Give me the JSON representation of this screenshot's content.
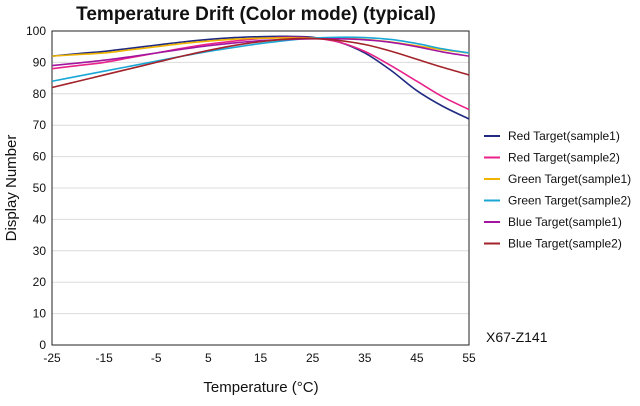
{
  "chart_data": {
    "type": "line",
    "title": "Temperature Drift  (Color mode) (typical)",
    "xlabel": "Temperature (°C)",
    "ylabel": "Display Number",
    "x_ticks": [
      "-25",
      "-15",
      "-5",
      "5",
      "15",
      "25",
      "35",
      "45",
      "55"
    ],
    "y_ticks": [
      "0",
      "10",
      "20",
      "30",
      "40",
      "50",
      "60",
      "70",
      "80",
      "90",
      "100"
    ],
    "xlim": [
      -25,
      55
    ],
    "ylim": [
      0,
      100
    ],
    "grid": "horizontal",
    "legend_position": "right",
    "model_label": "X67-Z141",
    "x": [
      -25,
      -20,
      -15,
      -10,
      -5,
      0,
      5,
      10,
      15,
      20,
      25,
      30,
      35,
      40,
      45,
      50,
      55
    ],
    "series": [
      {
        "name": "Red Target(sample1)",
        "color": "#1f2a80",
        "values": [
          92,
          92.8,
          93.5,
          94.5,
          95.5,
          96.5,
          97.3,
          97.9,
          98.2,
          98.3,
          98,
          96.5,
          93,
          87.5,
          81,
          76,
          72
        ]
      },
      {
        "name": "Red Target(sample2)",
        "color": "#e8228a",
        "values": [
          88,
          89,
          90,
          91.5,
          93,
          94.5,
          95.8,
          96.8,
          97.6,
          98,
          97.8,
          96.5,
          93.5,
          89,
          84,
          79,
          75
        ]
      },
      {
        "name": "Green Target(sample1)",
        "color": "#f0b400",
        "values": [
          92,
          92.5,
          93,
          94,
          95,
          96,
          96.8,
          97.4,
          97.7,
          97.8,
          97.8,
          97.7,
          97.3,
          96.5,
          95.3,
          94,
          93
        ]
      },
      {
        "name": "Green Target(sample2)",
        "color": "#1aa7d6",
        "values": [
          84,
          85.6,
          87.2,
          88.8,
          90.4,
          92,
          93.5,
          94.8,
          96,
          97,
          97.7,
          98,
          97.9,
          97.3,
          96,
          94.3,
          93
        ]
      },
      {
        "name": "Blue Target(sample1)",
        "color": "#a3159e",
        "values": [
          89,
          89.8,
          90.7,
          91.8,
          93,
          94.2,
          95.3,
          96.2,
          96.9,
          97.3,
          97.5,
          97.5,
          97.2,
          96.4,
          95,
          93.3,
          92
        ]
      },
      {
        "name": "Blue Target(sample2)",
        "color": "#a3232a",
        "values": [
          82,
          84,
          86,
          88,
          90,
          92,
          93.8,
          95.4,
          96.6,
          97.4,
          97.6,
          97,
          95.7,
          93.6,
          91,
          88.4,
          86
        ]
      }
    ]
  }
}
